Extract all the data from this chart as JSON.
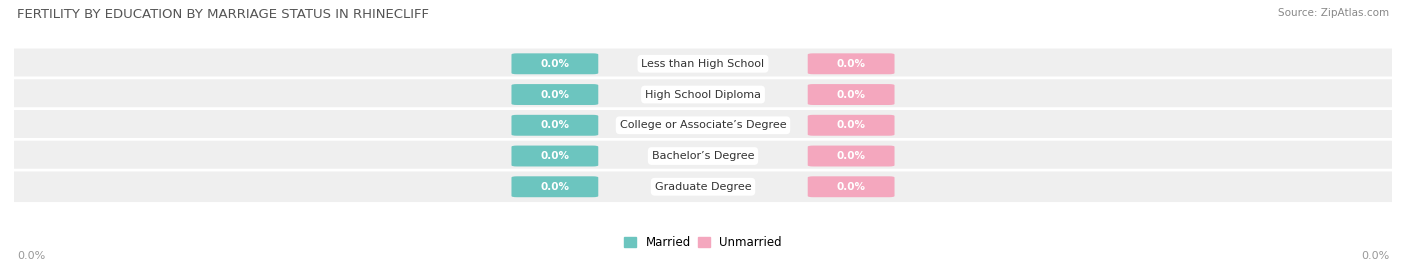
{
  "title": "FERTILITY BY EDUCATION BY MARRIAGE STATUS IN RHINECLIFF",
  "source": "Source: ZipAtlas.com",
  "categories": [
    "Less than High School",
    "High School Diploma",
    "College or Associate’s Degree",
    "Bachelor’s Degree",
    "Graduate Degree"
  ],
  "married_values": [
    0.0,
    0.0,
    0.0,
    0.0,
    0.0
  ],
  "unmarried_values": [
    0.0,
    0.0,
    0.0,
    0.0,
    0.0
  ],
  "married_color": "#6cc5bf",
  "unmarried_color": "#f4a7be",
  "row_bg_color": "#efefef",
  "label_married": "Married",
  "label_unmarried": "Unmarried",
  "title_fontsize": 9.5,
  "source_fontsize": 7.5,
  "axis_label_fontsize": 8,
  "bar_label_fontsize": 7.5,
  "cat_label_fontsize": 8,
  "background_color": "#ffffff",
  "x_left_label": "0.0%",
  "x_right_label": "0.0%"
}
